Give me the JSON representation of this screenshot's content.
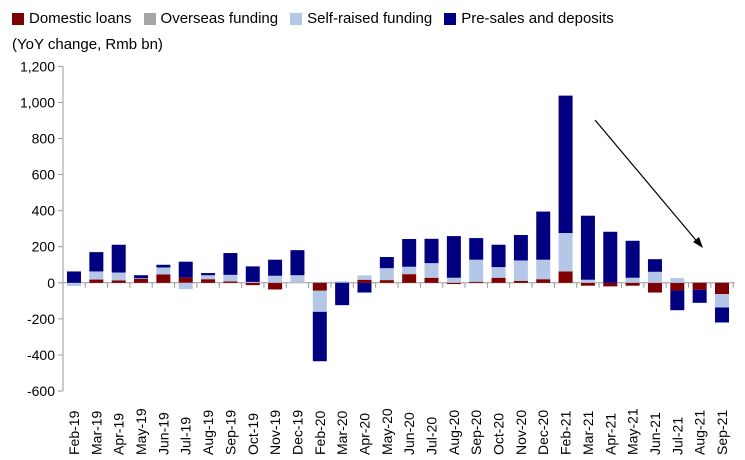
{
  "chart_data": {
    "type": "bar",
    "stacked": true,
    "ylabel": "(YoY change, Rmb bn)",
    "ylim": [
      -600,
      1200
    ],
    "yticks": [
      1200,
      1000,
      800,
      600,
      400,
      200,
      0,
      -200,
      -400,
      -600
    ],
    "ytick_labels": [
      "1,200",
      "1,000",
      "800",
      "600",
      "400",
      "200",
      "0",
      "-200",
      "-400",
      "-600"
    ],
    "grid": false,
    "legend_position": "top",
    "categories": [
      "Feb-19",
      "Mar-19",
      "Apr-19",
      "May-19",
      "Jun-19",
      "Jul-19",
      "Aug-19",
      "Sep-19",
      "Oct-19",
      "Nov-19",
      "Dec-19",
      "Feb-20",
      "Mar-20",
      "Apr-20",
      "May-20",
      "Jun-20",
      "Jul-20",
      "Aug-20",
      "Sep-20",
      "Oct-20",
      "Nov-20",
      "Dec-20",
      "Feb-21",
      "Mar-21",
      "Apr-21",
      "May-21",
      "Jun-21",
      "Jul-21",
      "Aug-21",
      "Sep-21"
    ],
    "series": [
      {
        "name": "Domestic loans",
        "color": "#7f0000",
        "values": [
          0,
          18,
          13,
          22,
          46,
          28,
          20,
          8,
          -13,
          -37,
          0,
          -44,
          0,
          17,
          15,
          48,
          28,
          -7,
          6,
          28,
          11,
          20,
          63,
          -16,
          -20,
          -16,
          -54,
          -43,
          -39,
          -63
        ]
      },
      {
        "name": "Overseas funding",
        "color": "#a6a6a6",
        "values": [
          0,
          0,
          0,
          0,
          0,
          0,
          0,
          0,
          0,
          0,
          0,
          0,
          0,
          0,
          0,
          0,
          0,
          0,
          0,
          0,
          0,
          0,
          0,
          0,
          0,
          0,
          0,
          0,
          0,
          0
        ]
      },
      {
        "name": "Self-raised funding",
        "color": "#b4c7e7",
        "values": [
          -18,
          45,
          44,
          3,
          39,
          -35,
          22,
          36,
          5,
          39,
          42,
          -117,
          9,
          24,
          66,
          41,
          81,
          28,
          122,
          59,
          113,
          108,
          213,
          17,
          0,
          28,
          61,
          26,
          0,
          -74
        ]
      },
      {
        "name": "Pre-sales and deposits",
        "color": "#000080",
        "values": [
          63,
          107,
          154,
          17,
          15,
          89,
          12,
          121,
          86,
          89,
          139,
          -274,
          -124,
          -54,
          62,
          154,
          135,
          231,
          120,
          124,
          141,
          267,
          762,
          355,
          283,
          205,
          70,
          -109,
          -72,
          -83
        ]
      }
    ]
  }
}
